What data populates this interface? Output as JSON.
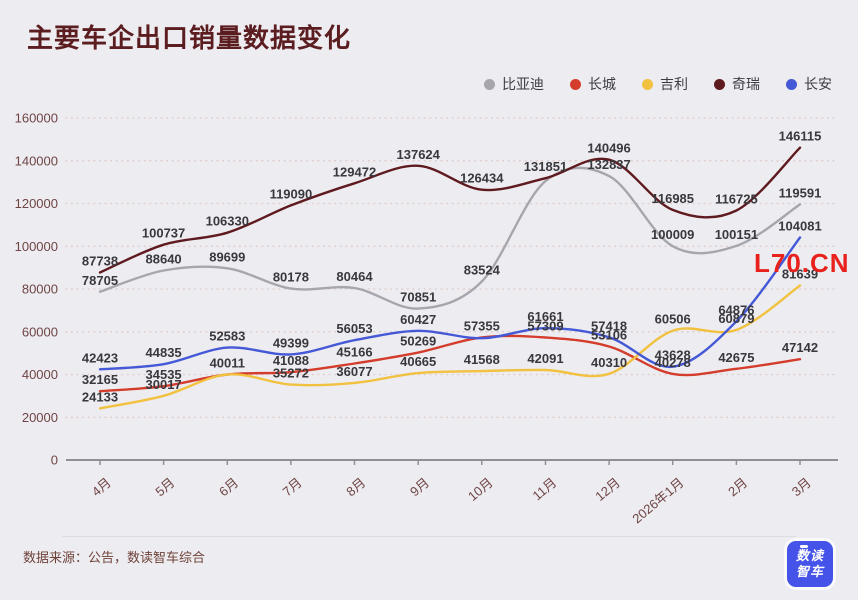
{
  "title": "主要车企出口销量数据变化",
  "watermark": "L70.CN",
  "watermark_color": "#e8211c",
  "footer": {
    "source": "数据来源：公告，数读智车综合",
    "logo_lines": [
      "数读",
      "智车"
    ]
  },
  "chart_data": {
    "type": "line",
    "title": "主要车企出口销量数据变化",
    "categories": [
      "4月",
      "5月",
      "6月",
      "7月",
      "8月",
      "9月",
      "10月",
      "11月",
      "12月",
      "2026年1月",
      "2月",
      "3月"
    ],
    "y_axis": {
      "min": 0,
      "max": 160000,
      "step": 20000,
      "grid": "dotted"
    },
    "legend_position": "top-right",
    "smooth": true,
    "series": [
      {
        "name": "比亚迪",
        "color": "#a6a6ac",
        "values": [
          78705,
          88640,
          89699,
          80178,
          80464,
          70851,
          83524,
          130500,
          132837,
          100009,
          100151,
          119591
        ],
        "unlabeled_points": [
          7
        ]
      },
      {
        "name": "长城",
        "color": "#d43c2c",
        "values": [
          32165,
          34535,
          40011,
          41088,
          45166,
          50269,
          57355,
          57309,
          53106,
          40278,
          42675,
          47142
        ],
        "unlabeled_points": []
      },
      {
        "name": "吉利",
        "color": "#f1c13f",
        "values": [
          24133,
          30017,
          40011,
          35272,
          36077,
          40665,
          41568,
          42091,
          40310,
          60506,
          60879,
          81639
        ],
        "unlabeled_points": [
          2
        ]
      },
      {
        "name": "奇瑞",
        "color": "#5e1a1e",
        "values": [
          87738,
          100737,
          106330,
          119090,
          129472,
          137624,
          126434,
          131851,
          140496,
          116985,
          116725,
          146115
        ],
        "unlabeled_points": []
      },
      {
        "name": "长安",
        "color": "#4558d6",
        "values": [
          42423,
          44835,
          52583,
          49399,
          56053,
          60427,
          57000,
          61661,
          57418,
          43628,
          64876,
          104081
        ],
        "unlabeled_points": [
          6
        ]
      }
    ]
  }
}
